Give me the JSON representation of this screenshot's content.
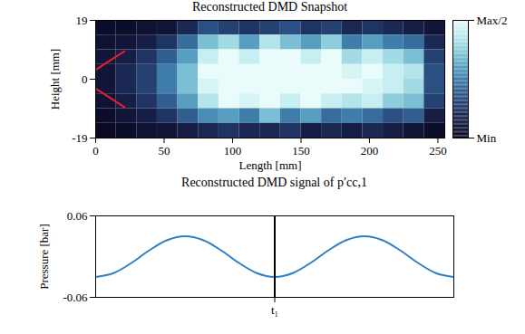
{
  "chart_data": [
    {
      "type": "heatmap",
      "title": "Reconstructed DMD Snapshot",
      "x_label": "Length [mm]",
      "y_label": "Height [mm]",
      "xlim": [
        0,
        255
      ],
      "ylim": [
        -19,
        19
      ],
      "xticks": [
        0,
        50,
        100,
        150,
        200,
        250
      ],
      "yticks": [
        -19,
        0,
        19
      ],
      "x_edges": [
        0,
        15,
        30,
        45,
        60,
        75,
        90,
        105,
        120,
        135,
        150,
        165,
        180,
        195,
        210,
        225,
        240,
        255
      ],
      "y_edges": [
        19,
        14.25,
        9.5,
        4.75,
        0,
        -4.75,
        -9.5,
        -14.25,
        -19
      ],
      "values": [
        [
          0.05,
          0.05,
          0.08,
          0.1,
          0.2,
          0.35,
          0.3,
          0.25,
          0.3,
          0.35,
          0.25,
          0.3,
          0.2,
          0.25,
          0.2,
          0.15,
          0.1
        ],
        [
          0.08,
          0.1,
          0.15,
          0.25,
          0.45,
          0.7,
          0.8,
          0.6,
          0.85,
          0.7,
          0.6,
          0.75,
          0.5,
          0.6,
          0.5,
          0.45,
          0.2
        ],
        [
          0.1,
          0.15,
          0.25,
          0.4,
          0.6,
          0.9,
          1,
          0.9,
          1,
          1,
          0.9,
          1,
          0.8,
          0.9,
          0.8,
          0.7,
          0.3
        ],
        [
          0.1,
          0.2,
          0.3,
          0.5,
          0.7,
          1,
          1,
          1,
          1,
          1,
          1,
          1,
          0.95,
          1,
          0.9,
          0.85,
          0.35
        ],
        [
          0.1,
          0.2,
          0.3,
          0.5,
          0.7,
          0.95,
          1,
          1,
          1,
          1,
          1,
          1,
          1,
          0.95,
          0.9,
          0.8,
          0.35
        ],
        [
          0.08,
          0.15,
          0.25,
          0.4,
          0.6,
          0.85,
          1,
          0.95,
          1,
          0.9,
          1,
          0.9,
          0.85,
          0.9,
          0.75,
          0.7,
          0.3
        ],
        [
          0.05,
          0.1,
          0.15,
          0.25,
          0.4,
          0.55,
          0.6,
          0.5,
          0.7,
          0.5,
          0.6,
          0.45,
          0.5,
          0.45,
          0.35,
          0.4,
          0.15
        ],
        [
          0.03,
          0.05,
          0.08,
          0.1,
          0.15,
          0.2,
          0.25,
          0.2,
          0.2,
          0.25,
          0.15,
          0.2,
          0.15,
          0.2,
          0.15,
          0.1,
          0.05
        ]
      ],
      "colorbar": {
        "range": [
          0,
          1
        ],
        "ticks": [
          {
            "value": 0,
            "label": "Min"
          },
          {
            "value": 1,
            "label": "Max/2"
          }
        ]
      },
      "lines": [
        {
          "color": "#e8202a",
          "x": [
            0,
            21
          ],
          "y": [
            3,
            9
          ]
        },
        {
          "color": "#e8202a",
          "x": [
            0,
            21
          ],
          "y": [
            -3,
            -9
          ]
        }
      ]
    },
    {
      "type": "line",
      "title": "Reconstructed DMD signal of p′cc,1",
      "y_label": "Pressure [bar]",
      "xlim": [
        0,
        1
      ],
      "ylim": [
        -0.06,
        0.06
      ],
      "xticks": [
        {
          "value": 0.5,
          "label": "t₁"
        }
      ],
      "yticks": [
        -0.06,
        0.06
      ],
      "x": [
        0,
        0.05,
        0.1,
        0.15,
        0.2,
        0.25,
        0.3,
        0.35,
        0.4,
        0.45,
        0.5,
        0.55,
        0.6,
        0.65,
        0.7,
        0.75,
        0.8,
        0.85,
        0.9,
        0.95,
        1
      ],
      "series": [
        {
          "color": "#2f7fc1",
          "values": [
            -0.03,
            -0.0243,
            -0.0093,
            0.0093,
            0.0243,
            0.03,
            0.0243,
            0.0093,
            -0.0093,
            -0.0243,
            -0.03,
            -0.0243,
            -0.0093,
            0.0093,
            0.0243,
            0.03,
            0.0243,
            0.0093,
            -0.0093,
            -0.0243,
            -0.03
          ]
        }
      ],
      "vlines": [
        0.5
      ]
    }
  ]
}
